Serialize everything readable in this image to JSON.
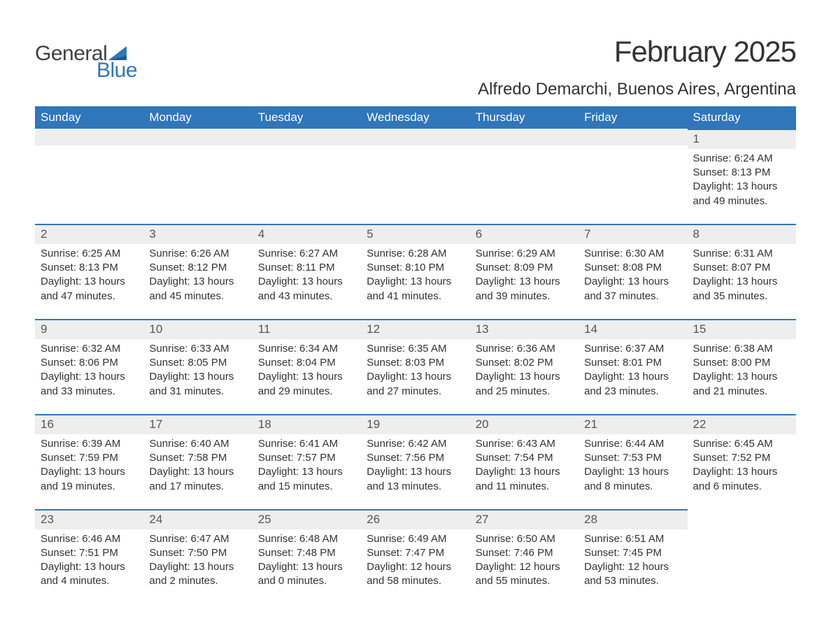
{
  "logo": {
    "text_general": "General",
    "text_blue": "Blue",
    "sail_color": "#2f76bb",
    "general_color": "#404040"
  },
  "titles": {
    "month": "February 2025",
    "location": "Alfredo Demarchi, Buenos Aires, Argentina"
  },
  "colors": {
    "header_bg": "#2f76bb",
    "header_text": "#ffffff",
    "daynum_bg": "#eeeeee",
    "daynum_border": "#2f76bb",
    "body_text": "#333333",
    "background": "#ffffff"
  },
  "weekdays": [
    "Sunday",
    "Monday",
    "Tuesday",
    "Wednesday",
    "Thursday",
    "Friday",
    "Saturday"
  ],
  "labels": {
    "sunrise": "Sunrise:",
    "sunset": "Sunset:",
    "daylight": "Daylight:"
  },
  "start_weekday_index": 6,
  "days": [
    {
      "n": 1,
      "sunrise": "6:24 AM",
      "sunset": "8:13 PM",
      "daylight": "13 hours and 49 minutes."
    },
    {
      "n": 2,
      "sunrise": "6:25 AM",
      "sunset": "8:13 PM",
      "daylight": "13 hours and 47 minutes."
    },
    {
      "n": 3,
      "sunrise": "6:26 AM",
      "sunset": "8:12 PM",
      "daylight": "13 hours and 45 minutes."
    },
    {
      "n": 4,
      "sunrise": "6:27 AM",
      "sunset": "8:11 PM",
      "daylight": "13 hours and 43 minutes."
    },
    {
      "n": 5,
      "sunrise": "6:28 AM",
      "sunset": "8:10 PM",
      "daylight": "13 hours and 41 minutes."
    },
    {
      "n": 6,
      "sunrise": "6:29 AM",
      "sunset": "8:09 PM",
      "daylight": "13 hours and 39 minutes."
    },
    {
      "n": 7,
      "sunrise": "6:30 AM",
      "sunset": "8:08 PM",
      "daylight": "13 hours and 37 minutes."
    },
    {
      "n": 8,
      "sunrise": "6:31 AM",
      "sunset": "8:07 PM",
      "daylight": "13 hours and 35 minutes."
    },
    {
      "n": 9,
      "sunrise": "6:32 AM",
      "sunset": "8:06 PM",
      "daylight": "13 hours and 33 minutes."
    },
    {
      "n": 10,
      "sunrise": "6:33 AM",
      "sunset": "8:05 PM",
      "daylight": "13 hours and 31 minutes."
    },
    {
      "n": 11,
      "sunrise": "6:34 AM",
      "sunset": "8:04 PM",
      "daylight": "13 hours and 29 minutes."
    },
    {
      "n": 12,
      "sunrise": "6:35 AM",
      "sunset": "8:03 PM",
      "daylight": "13 hours and 27 minutes."
    },
    {
      "n": 13,
      "sunrise": "6:36 AM",
      "sunset": "8:02 PM",
      "daylight": "13 hours and 25 minutes."
    },
    {
      "n": 14,
      "sunrise": "6:37 AM",
      "sunset": "8:01 PM",
      "daylight": "13 hours and 23 minutes."
    },
    {
      "n": 15,
      "sunrise": "6:38 AM",
      "sunset": "8:00 PM",
      "daylight": "13 hours and 21 minutes."
    },
    {
      "n": 16,
      "sunrise": "6:39 AM",
      "sunset": "7:59 PM",
      "daylight": "13 hours and 19 minutes."
    },
    {
      "n": 17,
      "sunrise": "6:40 AM",
      "sunset": "7:58 PM",
      "daylight": "13 hours and 17 minutes."
    },
    {
      "n": 18,
      "sunrise": "6:41 AM",
      "sunset": "7:57 PM",
      "daylight": "13 hours and 15 minutes."
    },
    {
      "n": 19,
      "sunrise": "6:42 AM",
      "sunset": "7:56 PM",
      "daylight": "13 hours and 13 minutes."
    },
    {
      "n": 20,
      "sunrise": "6:43 AM",
      "sunset": "7:54 PM",
      "daylight": "13 hours and 11 minutes."
    },
    {
      "n": 21,
      "sunrise": "6:44 AM",
      "sunset": "7:53 PM",
      "daylight": "13 hours and 8 minutes."
    },
    {
      "n": 22,
      "sunrise": "6:45 AM",
      "sunset": "7:52 PM",
      "daylight": "13 hours and 6 minutes."
    },
    {
      "n": 23,
      "sunrise": "6:46 AM",
      "sunset": "7:51 PM",
      "daylight": "13 hours and 4 minutes."
    },
    {
      "n": 24,
      "sunrise": "6:47 AM",
      "sunset": "7:50 PM",
      "daylight": "13 hours and 2 minutes."
    },
    {
      "n": 25,
      "sunrise": "6:48 AM",
      "sunset": "7:48 PM",
      "daylight": "13 hours and 0 minutes."
    },
    {
      "n": 26,
      "sunrise": "6:49 AM",
      "sunset": "7:47 PM",
      "daylight": "12 hours and 58 minutes."
    },
    {
      "n": 27,
      "sunrise": "6:50 AM",
      "sunset": "7:46 PM",
      "daylight": "12 hours and 55 minutes."
    },
    {
      "n": 28,
      "sunrise": "6:51 AM",
      "sunset": "7:45 PM",
      "daylight": "12 hours and 53 minutes."
    }
  ]
}
